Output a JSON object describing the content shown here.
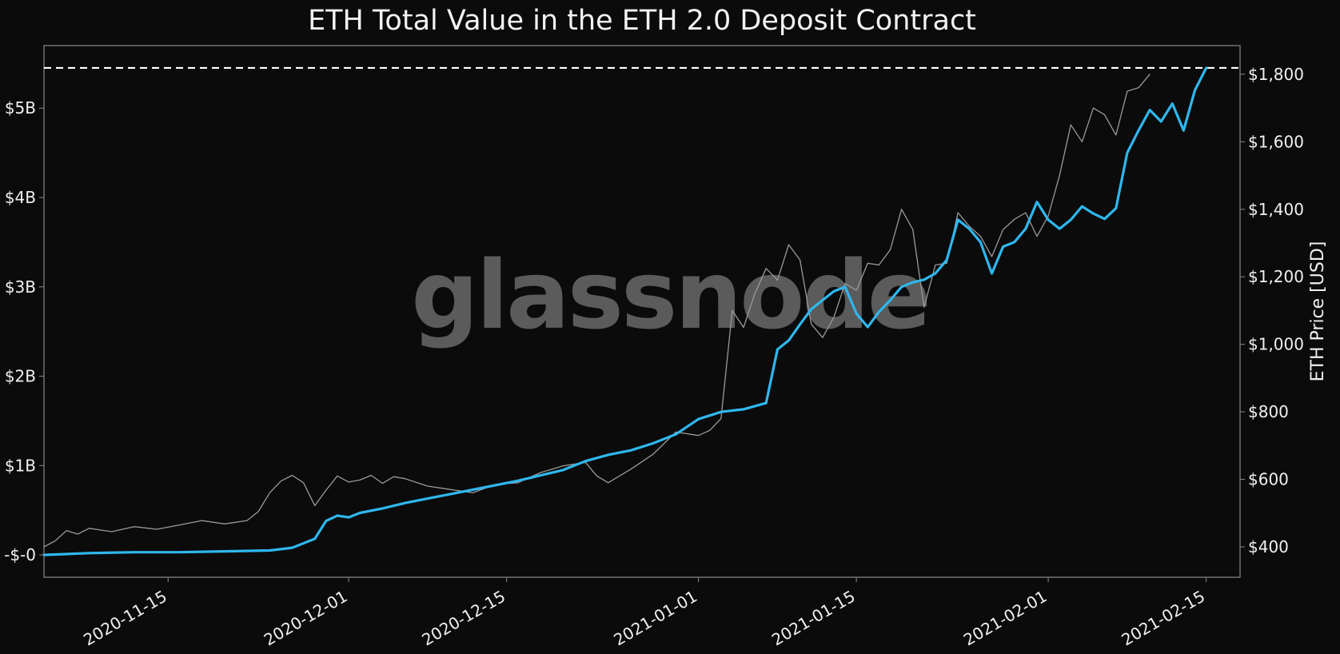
{
  "chart_data": {
    "type": "line",
    "title": "ETH Total Value in the ETH 2.0 Deposit Contract",
    "watermark": "glassnode",
    "x_range": [
      "2020-11-04",
      "2021-02-18"
    ],
    "x_ticks": [
      "2020-11-15",
      "2020-12-01",
      "2020-12-15",
      "2021-01-01",
      "2021-01-15",
      "2021-02-01",
      "2021-02-15"
    ],
    "y_left": {
      "label": "",
      "range": [
        -0.25,
        5.7
      ],
      "unit": "billion USD",
      "ticks": [
        {
          "value": 0,
          "label": "-$-0"
        },
        {
          "value": 1,
          "label": "$1B"
        },
        {
          "value": 2,
          "label": "$2B"
        },
        {
          "value": 3,
          "label": "$3B"
        },
        {
          "value": 4,
          "label": "$4B"
        },
        {
          "value": 5,
          "label": "$5B"
        }
      ]
    },
    "y_right": {
      "label": "ETH Price [USD]",
      "range": [
        310,
        1885
      ],
      "ticks": [
        {
          "value": 400,
          "label": "$400"
        },
        {
          "value": 600,
          "label": "$600"
        },
        {
          "value": 800,
          "label": "$800"
        },
        {
          "value": 1000,
          "label": "$1,000"
        },
        {
          "value": 1200,
          "label": "$1,200"
        },
        {
          "value": 1400,
          "label": "$1,400"
        },
        {
          "value": 1600,
          "label": "$1,600"
        },
        {
          "value": 1800,
          "label": "$1,800"
        }
      ]
    },
    "reference_line": {
      "axis": "left",
      "value": 5.45,
      "style": "dashed",
      "color": "#ffffff"
    },
    "series": [
      {
        "axis": "left",
        "color": "#2fb7ee",
        "values": [
          [
            "2020-11-04",
            0.0
          ],
          [
            "2020-11-08",
            0.02
          ],
          [
            "2020-11-12",
            0.03
          ],
          [
            "2020-11-16",
            0.03
          ],
          [
            "2020-11-20",
            0.04
          ],
          [
            "2020-11-24",
            0.05
          ],
          [
            "2020-11-26",
            0.08
          ],
          [
            "2020-11-28",
            0.18
          ],
          [
            "2020-11-29",
            0.38
          ],
          [
            "2020-11-30",
            0.44
          ],
          [
            "2020-12-01",
            0.42
          ],
          [
            "2020-12-02",
            0.47
          ],
          [
            "2020-12-04",
            0.52
          ],
          [
            "2020-12-06",
            0.58
          ],
          [
            "2020-12-08",
            0.63
          ],
          [
            "2020-12-10",
            0.68
          ],
          [
            "2020-12-12",
            0.73
          ],
          [
            "2020-12-14",
            0.78
          ],
          [
            "2020-12-16",
            0.83
          ],
          [
            "2020-12-18",
            0.89
          ],
          [
            "2020-12-20",
            0.95
          ],
          [
            "2020-12-22",
            1.05
          ],
          [
            "2020-12-24",
            1.12
          ],
          [
            "2020-12-26",
            1.17
          ],
          [
            "2020-12-28",
            1.25
          ],
          [
            "2020-12-30",
            1.35
          ],
          [
            "2021-01-01",
            1.52
          ],
          [
            "2021-01-03",
            1.6
          ],
          [
            "2021-01-05",
            1.63
          ],
          [
            "2021-01-07",
            1.7
          ],
          [
            "2021-01-08",
            2.3
          ],
          [
            "2021-01-09",
            2.4
          ],
          [
            "2021-01-10",
            2.58
          ],
          [
            "2021-01-11",
            2.75
          ],
          [
            "2021-01-12",
            2.85
          ],
          [
            "2021-01-13",
            2.95
          ],
          [
            "2021-01-14",
            3.0
          ],
          [
            "2021-01-15",
            2.7
          ],
          [
            "2021-01-16",
            2.55
          ],
          [
            "2021-01-17",
            2.72
          ],
          [
            "2021-01-18",
            2.85
          ],
          [
            "2021-01-19",
            3.0
          ],
          [
            "2021-01-20",
            3.05
          ],
          [
            "2021-01-21",
            3.08
          ],
          [
            "2021-01-22",
            3.15
          ],
          [
            "2021-01-23",
            3.3
          ],
          [
            "2021-01-24",
            3.75
          ],
          [
            "2021-01-25",
            3.65
          ],
          [
            "2021-01-26",
            3.5
          ],
          [
            "2021-01-27",
            3.15
          ],
          [
            "2021-01-28",
            3.45
          ],
          [
            "2021-01-29",
            3.5
          ],
          [
            "2021-01-30",
            3.65
          ],
          [
            "2021-01-31",
            3.95
          ],
          [
            "2021-02-01",
            3.75
          ],
          [
            "2021-02-02",
            3.65
          ],
          [
            "2021-02-03",
            3.75
          ],
          [
            "2021-02-04",
            3.9
          ],
          [
            "2021-02-05",
            3.82
          ],
          [
            "2021-02-06",
            3.76
          ],
          [
            "2021-02-07",
            3.88
          ],
          [
            "2021-02-08",
            4.5
          ],
          [
            "2021-02-09",
            4.75
          ],
          [
            "2021-02-10",
            4.98
          ],
          [
            "2021-02-11",
            4.85
          ],
          [
            "2021-02-12",
            5.05
          ],
          [
            "2021-02-13",
            4.75
          ],
          [
            "2021-02-14",
            5.2
          ],
          [
            "2021-02-15",
            5.45
          ]
        ]
      },
      {
        "axis": "right",
        "color": "#9a9a9a",
        "values": [
          [
            "2020-11-04",
            400
          ],
          [
            "2020-11-05",
            418
          ],
          [
            "2020-11-06",
            448
          ],
          [
            "2020-11-07",
            438
          ],
          [
            "2020-11-08",
            455
          ],
          [
            "2020-11-10",
            445
          ],
          [
            "2020-11-12",
            460
          ],
          [
            "2020-11-14",
            452
          ],
          [
            "2020-11-16",
            465
          ],
          [
            "2020-11-18",
            478
          ],
          [
            "2020-11-20",
            468
          ],
          [
            "2020-11-22",
            478
          ],
          [
            "2020-11-23",
            505
          ],
          [
            "2020-11-24",
            560
          ],
          [
            "2020-11-25",
            595
          ],
          [
            "2020-11-26",
            612
          ],
          [
            "2020-11-27",
            590
          ],
          [
            "2020-11-28",
            522
          ],
          [
            "2020-11-29",
            568
          ],
          [
            "2020-11-30",
            610
          ],
          [
            "2020-12-01",
            592
          ],
          [
            "2020-12-02",
            598
          ],
          [
            "2020-12-03",
            612
          ],
          [
            "2020-12-04",
            588
          ],
          [
            "2020-12-05",
            608
          ],
          [
            "2020-12-06",
            602
          ],
          [
            "2020-12-08",
            580
          ],
          [
            "2020-12-10",
            570
          ],
          [
            "2020-12-12",
            560
          ],
          [
            "2020-12-14",
            585
          ],
          [
            "2020-12-16",
            590
          ],
          [
            "2020-12-17",
            605
          ],
          [
            "2020-12-18",
            620
          ],
          [
            "2020-12-20",
            640
          ],
          [
            "2020-12-22",
            650
          ],
          [
            "2020-12-23",
            610
          ],
          [
            "2020-12-24",
            590
          ],
          [
            "2020-12-26",
            630
          ],
          [
            "2020-12-28",
            675
          ],
          [
            "2020-12-30",
            740
          ],
          [
            "2021-01-01",
            730
          ],
          [
            "2021-01-02",
            745
          ],
          [
            "2021-01-03",
            780
          ],
          [
            "2021-01-04",
            1100
          ],
          [
            "2021-01-05",
            1050
          ],
          [
            "2021-01-06",
            1150
          ],
          [
            "2021-01-07",
            1225
          ],
          [
            "2021-01-08",
            1190
          ],
          [
            "2021-01-09",
            1295
          ],
          [
            "2021-01-10",
            1250
          ],
          [
            "2021-01-11",
            1060
          ],
          [
            "2021-01-12",
            1020
          ],
          [
            "2021-01-13",
            1080
          ],
          [
            "2021-01-14",
            1180
          ],
          [
            "2021-01-15",
            1160
          ],
          [
            "2021-01-16",
            1240
          ],
          [
            "2021-01-17",
            1235
          ],
          [
            "2021-01-18",
            1280
          ],
          [
            "2021-01-19",
            1400
          ],
          [
            "2021-01-20",
            1340
          ],
          [
            "2021-01-21",
            1110
          ],
          [
            "2021-01-22",
            1235
          ],
          [
            "2021-01-23",
            1240
          ],
          [
            "2021-01-24",
            1390
          ],
          [
            "2021-01-25",
            1350
          ],
          [
            "2021-01-26",
            1320
          ],
          [
            "2021-01-27",
            1260
          ],
          [
            "2021-01-28",
            1340
          ],
          [
            "2021-01-29",
            1370
          ],
          [
            "2021-01-30",
            1390
          ],
          [
            "2021-01-31",
            1320
          ],
          [
            "2021-02-01",
            1380
          ],
          [
            "2021-02-02",
            1500
          ],
          [
            "2021-02-03",
            1650
          ],
          [
            "2021-02-04",
            1600
          ],
          [
            "2021-02-05",
            1700
          ],
          [
            "2021-02-06",
            1680
          ],
          [
            "2021-02-07",
            1620
          ],
          [
            "2021-02-08",
            1750
          ],
          [
            "2021-02-09",
            1760
          ],
          [
            "2021-02-10",
            1800
          ]
        ]
      }
    ]
  }
}
